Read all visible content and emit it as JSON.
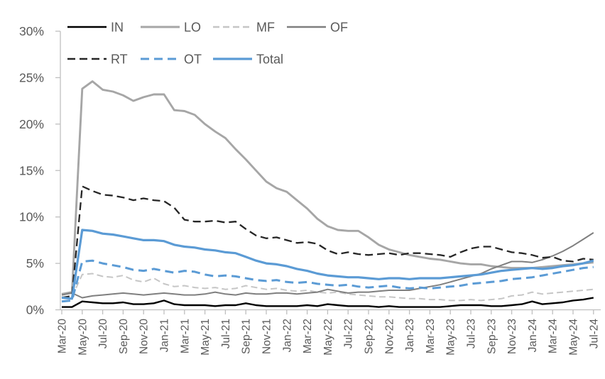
{
  "chart_data": {
    "type": "line",
    "title": "",
    "xlabel": "",
    "ylabel": "",
    "grid": false,
    "x_ticks_every": 2,
    "y_axis": {
      "min": 0,
      "max": 30,
      "step": 5,
      "suffix": "%",
      "labels": [
        "0%",
        "5%",
        "10%",
        "15%",
        "20%",
        "25%",
        "30%"
      ]
    },
    "legend": {
      "position": "top",
      "rows": [
        [
          "IN",
          "LO",
          "MF",
          "OF"
        ],
        [
          "RT",
          "OT",
          "Total"
        ]
      ]
    },
    "colors": {
      "axis": "#BFBFBF",
      "text": "#595959",
      "blue": "#5B9BD5",
      "black": "#000000",
      "gray_medium": "#A6A6A6",
      "gray_dark": "#7F7F7F",
      "gray_light": "#C6C6C6",
      "near_black": "#262626"
    },
    "categories": [
      "Mar-20",
      "Apr-20",
      "May-20",
      "Jun-20",
      "Jul-20",
      "Aug-20",
      "Sep-20",
      "Oct-20",
      "Nov-20",
      "Dec-20",
      "Jan-21",
      "Feb-21",
      "Mar-21",
      "Apr-21",
      "May-21",
      "Jun-21",
      "Jul-21",
      "Aug-21",
      "Sep-21",
      "Oct-21",
      "Nov-21",
      "Dec-21",
      "Jan-22",
      "Feb-22",
      "Mar-22",
      "Apr-22",
      "May-22",
      "Jun-22",
      "Jul-22",
      "Aug-22",
      "Sep-22",
      "Oct-22",
      "Nov-22",
      "Dec-22",
      "Jan-23",
      "Feb-23",
      "Mar-23",
      "Apr-23",
      "May-23",
      "Jun-23",
      "Jul-23",
      "Aug-23",
      "Sep-23",
      "Oct-23",
      "Nov-23",
      "Dec-23",
      "Jan-24",
      "Feb-24",
      "Mar-24",
      "Apr-24",
      "May-24",
      "Jun-24",
      "Jul-24"
    ],
    "series": [
      {
        "name": "IN",
        "color": "#000000",
        "dash": null,
        "width": 2.4,
        "values": [
          0.3,
          0.3,
          0.9,
          0.8,
          0.7,
          0.7,
          0.8,
          0.6,
          0.6,
          0.7,
          1.0,
          0.6,
          0.5,
          0.5,
          0.5,
          0.4,
          0.5,
          0.5,
          0.7,
          0.5,
          0.4,
          0.4,
          0.4,
          0.4,
          0.5,
          0.4,
          0.6,
          0.5,
          0.4,
          0.4,
          0.4,
          0.3,
          0.4,
          0.3,
          0.3,
          0.3,
          0.3,
          0.3,
          0.4,
          0.5,
          0.5,
          0.5,
          0.4,
          0.4,
          0.5,
          0.6,
          0.9,
          0.6,
          0.7,
          0.8,
          1.0,
          1.1,
          1.3
        ]
      },
      {
        "name": "LO",
        "color": "#A6A6A6",
        "dash": null,
        "width": 2.9,
        "values": [
          1.7,
          1.9,
          23.8,
          24.6,
          23.7,
          23.5,
          23.1,
          22.5,
          22.9,
          23.2,
          23.2,
          21.5,
          21.4,
          21.0,
          20.0,
          19.2,
          18.5,
          17.3,
          16.2,
          15.0,
          13.8,
          13.1,
          12.7,
          11.8,
          10.9,
          9.8,
          9.0,
          8.6,
          8.5,
          8.5,
          7.8,
          7.0,
          6.5,
          6.2,
          5.9,
          5.7,
          5.5,
          5.4,
          5.2,
          5.0,
          4.9,
          4.9,
          4.7,
          4.6,
          4.5,
          4.5,
          4.5,
          4.6,
          4.7,
          4.8,
          4.9,
          5.0,
          5.1
        ]
      },
      {
        "name": "MF",
        "color": "#C6C6C6",
        "dash": "9 5",
        "width": 2.0,
        "values": [
          1.4,
          1.4,
          3.8,
          3.9,
          3.6,
          3.5,
          3.7,
          3.2,
          3.0,
          3.4,
          2.8,
          2.5,
          2.6,
          2.4,
          2.3,
          2.4,
          2.2,
          2.3,
          2.6,
          2.4,
          2.2,
          2.3,
          2.1,
          2.0,
          2.1,
          1.9,
          1.8,
          1.9,
          1.7,
          1.6,
          1.5,
          1.4,
          1.4,
          1.3,
          1.2,
          1.2,
          1.1,
          1.1,
          1.0,
          1.0,
          1.1,
          1.0,
          1.1,
          1.2,
          1.5,
          1.6,
          1.9,
          1.7,
          1.8,
          1.9,
          2.0,
          2.1,
          2.2
        ]
      },
      {
        "name": "OF",
        "color": "#7F7F7F",
        "dash": null,
        "width": 2.0,
        "values": [
          1.6,
          1.8,
          1.3,
          1.5,
          1.6,
          1.7,
          1.8,
          1.7,
          1.6,
          1.7,
          1.8,
          1.7,
          1.6,
          1.6,
          1.7,
          1.9,
          1.7,
          1.6,
          1.8,
          1.7,
          1.7,
          1.8,
          1.8,
          1.7,
          1.8,
          1.9,
          2.2,
          2.0,
          1.8,
          1.9,
          1.9,
          2.0,
          2.1,
          2.1,
          2.1,
          2.3,
          2.5,
          2.7,
          3.0,
          3.3,
          3.6,
          3.9,
          4.4,
          4.8,
          5.2,
          5.2,
          5.1,
          5.4,
          5.8,
          6.3,
          6.9,
          7.6,
          8.3
        ]
      },
      {
        "name": "RT",
        "color": "#262626",
        "dash": "11 6",
        "width": 2.3,
        "values": [
          1.3,
          1.5,
          13.3,
          12.8,
          12.4,
          12.3,
          12.1,
          11.8,
          12.0,
          11.8,
          11.7,
          11.0,
          9.7,
          9.5,
          9.5,
          9.6,
          9.4,
          9.5,
          8.7,
          8.0,
          7.7,
          7.8,
          7.5,
          7.2,
          7.3,
          7.1,
          6.4,
          6.0,
          6.2,
          6.0,
          5.9,
          6.0,
          6.1,
          5.9,
          6.1,
          6.1,
          6.0,
          5.9,
          5.7,
          6.2,
          6.6,
          6.8,
          6.8,
          6.5,
          6.2,
          6.1,
          5.9,
          5.6,
          5.7,
          5.3,
          5.2,
          5.5,
          5.4
        ]
      },
      {
        "name": "OT",
        "color": "#5B9BD5",
        "dash": "12 7",
        "width": 3.0,
        "values": [
          0.9,
          1.0,
          5.2,
          5.3,
          5.0,
          4.8,
          4.6,
          4.3,
          4.2,
          4.4,
          4.2,
          4.0,
          4.2,
          4.1,
          3.8,
          3.6,
          3.7,
          3.6,
          3.4,
          3.2,
          3.1,
          3.2,
          3.0,
          2.9,
          3.0,
          2.8,
          2.7,
          2.6,
          2.7,
          2.5,
          2.4,
          2.5,
          2.6,
          2.4,
          2.3,
          2.4,
          2.3,
          2.4,
          2.5,
          2.6,
          2.8,
          2.9,
          3.0,
          3.1,
          3.3,
          3.4,
          3.5,
          3.7,
          3.9,
          4.1,
          4.3,
          4.5,
          4.6
        ]
      },
      {
        "name": "Total",
        "color": "#5B9BD5",
        "dash": null,
        "width": 3.2,
        "values": [
          1.3,
          1.2,
          8.6,
          8.5,
          8.2,
          8.1,
          7.9,
          7.7,
          7.5,
          7.5,
          7.4,
          7.0,
          6.8,
          6.7,
          6.5,
          6.4,
          6.2,
          6.1,
          5.7,
          5.3,
          5.0,
          4.9,
          4.7,
          4.4,
          4.2,
          3.9,
          3.7,
          3.6,
          3.5,
          3.5,
          3.4,
          3.3,
          3.4,
          3.4,
          3.3,
          3.4,
          3.4,
          3.4,
          3.5,
          3.6,
          3.7,
          3.8,
          4.0,
          4.2,
          4.3,
          4.4,
          4.5,
          4.4,
          4.5,
          4.7,
          4.8,
          5.0,
          5.3
        ]
      }
    ]
  }
}
